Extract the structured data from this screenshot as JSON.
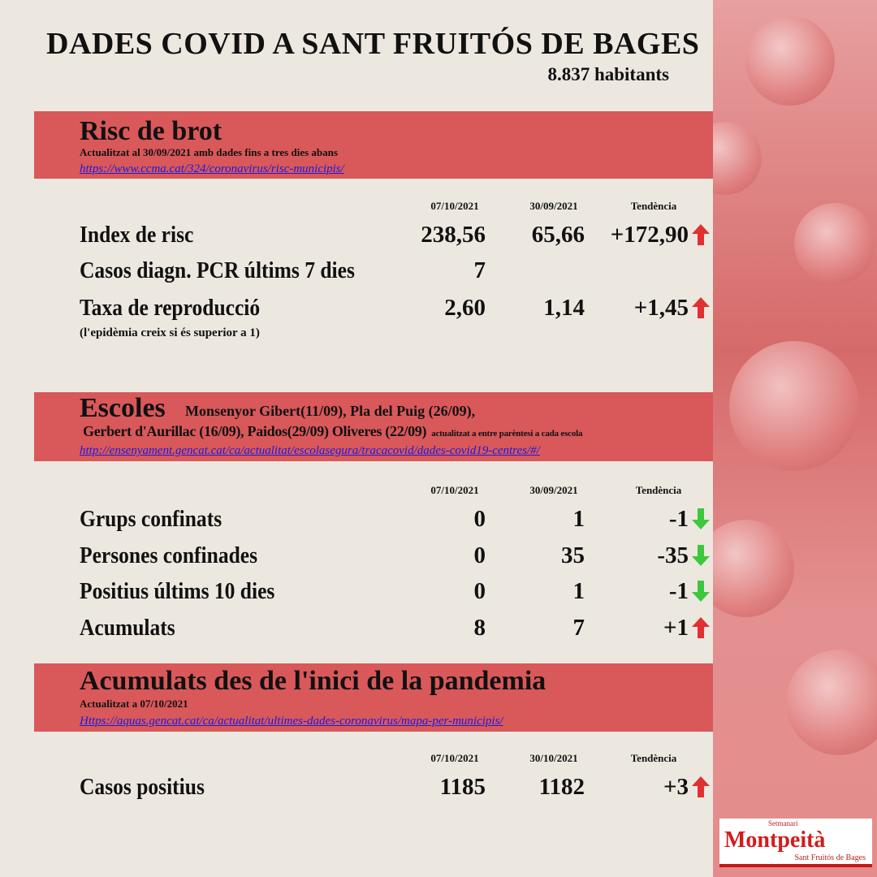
{
  "title": "DADES COVID A SANT FRUITÓS DE BAGES",
  "population": "8.837 habitants",
  "colors": {
    "band": "#d9585a",
    "up_arrow": "#e03030",
    "down_arrow": "#3cc83c",
    "link": "#1a1ae0"
  },
  "risc": {
    "heading": "Risc de brot",
    "updated": "Actualitzat al 30/09/2021  amb dades fins a tres dies abans",
    "link": "https://www.ccma.cat/324/coronavirus/risc-municipis/",
    "cols": [
      "07/10/2021",
      "30/09/2021",
      "Tendència"
    ],
    "rows": [
      {
        "label": "Index de risc",
        "v1": "238,56",
        "v2": "65,66",
        "trend": "+172,90",
        "dir": "up"
      },
      {
        "label": "Casos diagn. PCR últims   7 dies",
        "v1": "7",
        "v2": "",
        "trend": "",
        "dir": ""
      },
      {
        "label": "Taxa de reproducció",
        "v1": "2,60",
        "v2": "1,14",
        "trend": "+1,45",
        "dir": "up"
      }
    ],
    "note": "(l'epidèmia creix si és superior a 1)"
  },
  "escoles": {
    "heading": "Escoles",
    "schools1": "Monsenyor Gibert(11/09), Pla del Puig (26/09),",
    "schools2": "Gerbert d'Aurillac (16/09), Paidos(29/09) Oliveres (22/09)",
    "updated": "actualitzat a entre parèntesi a cada escola",
    "link": "http://ensenyament.gencat.cat/ca/actualitat/escolasegura/tracacovid/dades-covid19-centres/#/",
    "cols": [
      "07/10/2021",
      "30/09/2021",
      "Tendència"
    ],
    "rows": [
      {
        "label": "Grups confinats",
        "v1": "0",
        "v2": "1",
        "trend": "-1",
        "dir": "down"
      },
      {
        "label": "Persones confinades",
        "v1": "0",
        "v2": "35",
        "trend": "-35",
        "dir": "down"
      },
      {
        "label": "Positius últims 10 dies",
        "v1": "0",
        "v2": "1",
        "trend": "-1",
        "dir": "down"
      },
      {
        "label": "Acumulats",
        "v1": "8",
        "v2": "7",
        "trend": "+1",
        "dir": "up"
      }
    ]
  },
  "acumulats": {
    "heading": "Acumulats des de l'inici de la pandemia",
    "updated": "Actualitzat a 07/10/2021",
    "link": "Https://aquas.gencat.cat/ca/actualitat/ultimes-dades-coronavirus/mapa-per-municipis/",
    "cols": [
      "07/10/2021",
      "30/10/2021",
      "Tendència"
    ],
    "rows": [
      {
        "label": "Casos positius",
        "v1": "1185",
        "v2": "1182",
        "trend": "+3",
        "dir": "up"
      }
    ]
  },
  "logo": {
    "top": "Setmanari",
    "name": "Montpeità",
    "sub": "Sant Fruitós de Bages"
  }
}
